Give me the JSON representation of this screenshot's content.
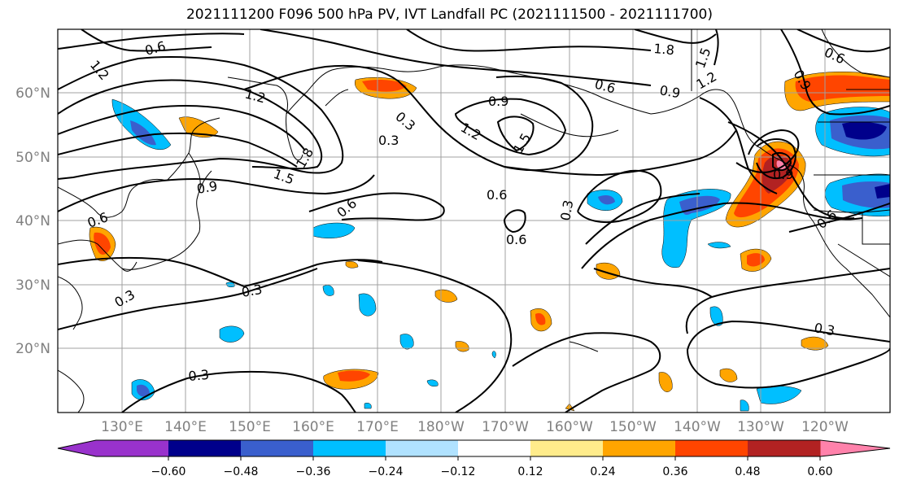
{
  "title": "2021111200 F096 500 hPa PV, IVT Landfall PC (2021111500 - 2021111700)",
  "lat_labels": [
    "60°N",
    "50°N",
    "40°N",
    "30°N",
    "20°N"
  ],
  "lon_labels": [
    "130°E",
    "140°E",
    "150°E",
    "160°E",
    "170°E",
    "180°W",
    "170°W",
    "160°W",
    "150°W",
    "140°W",
    "130°W",
    "120°W"
  ],
  "colorbar": {
    "tick_labels": [
      "−0.60",
      "−0.48",
      "−0.36",
      "−0.24",
      "−0.12",
      "0.12",
      "0.24",
      "0.36",
      "0.48",
      "0.60"
    ],
    "colors": [
      "#9932cc",
      "#00008b",
      "#3a5fcd",
      "#00bfff",
      "#b0e2ff",
      "#ffffff",
      "#ffec8b",
      "#ffa500",
      "#ff4500",
      "#b22222",
      "#ff82ab"
    ]
  },
  "contour_labels": [
    "0.6",
    "1.2",
    "1.2",
    "0.6",
    "0.6",
    "0.9",
    "0.9",
    "0.3",
    "1.2",
    "1.5",
    "1.5",
    "1.8",
    "0.6",
    "0.9",
    "1.2",
    "1.8",
    "1.5",
    "0.9",
    "0.6",
    "0.9",
    "0.6",
    "0.3",
    "0.6",
    "0.3",
    "0.3",
    "0.3",
    "0.3",
    "0.3",
    "0.6"
  ]
}
